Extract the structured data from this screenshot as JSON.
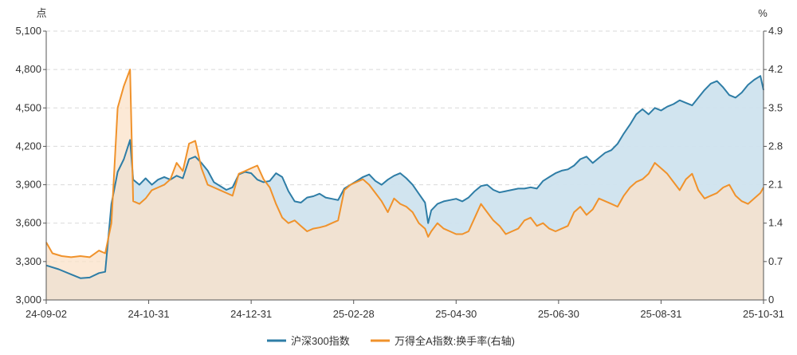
{
  "chart_data": {
    "type": "line",
    "left_axis": {
      "unit": "点",
      "range": [
        3000,
        5100
      ],
      "ticks": [
        "3,000",
        "3,300",
        "3,600",
        "3,900",
        "4,200",
        "4,500",
        "4,800",
        "5,100"
      ]
    },
    "right_axis": {
      "unit": "%",
      "range": [
        0,
        4.9
      ],
      "ticks": [
        "0",
        "0.7",
        "1.4",
        "2.1",
        "2.8",
        "3.5",
        "4.2",
        "4.9"
      ]
    },
    "x_ticks": [
      "24-09-02",
      "24-10-31",
      "24-12-31",
      "25-02-28",
      "25-04-30",
      "25-06-30",
      "25-08-31",
      "25-10-31"
    ],
    "grid": "horizontal-dashed",
    "legend_position": "bottom-center",
    "series": [
      {
        "name": "沪深300指数",
        "axis": "left",
        "color": "#2e7da6",
        "fill": "#cfe3ee",
        "points": [
          [
            0,
            3270
          ],
          [
            4,
            3240
          ],
          [
            8,
            3200
          ],
          [
            11,
            3170
          ],
          [
            14,
            3175
          ],
          [
            17,
            3210
          ],
          [
            19,
            3220
          ],
          [
            21,
            3750
          ],
          [
            23,
            4000
          ],
          [
            25,
            4100
          ],
          [
            27,
            4250
          ],
          [
            28,
            3940
          ],
          [
            30,
            3900
          ],
          [
            32,
            3950
          ],
          [
            34,
            3900
          ],
          [
            36,
            3940
          ],
          [
            38,
            3960
          ],
          [
            40,
            3940
          ],
          [
            42,
            3970
          ],
          [
            44,
            3950
          ],
          [
            46,
            4100
          ],
          [
            48,
            4120
          ],
          [
            50,
            4070
          ],
          [
            52,
            4010
          ],
          [
            54,
            3920
          ],
          [
            56,
            3890
          ],
          [
            58,
            3860
          ],
          [
            60,
            3880
          ],
          [
            62,
            3980
          ],
          [
            64,
            4000
          ],
          [
            66,
            3990
          ],
          [
            68,
            3940
          ],
          [
            70,
            3920
          ],
          [
            72,
            3930
          ],
          [
            74,
            3990
          ],
          [
            76,
            3960
          ],
          [
            78,
            3850
          ],
          [
            80,
            3770
          ],
          [
            82,
            3760
          ],
          [
            84,
            3800
          ],
          [
            86,
            3810
          ],
          [
            88,
            3830
          ],
          [
            90,
            3800
          ],
          [
            92,
            3790
          ],
          [
            94,
            3780
          ],
          [
            96,
            3870
          ],
          [
            98,
            3900
          ],
          [
            100,
            3930
          ],
          [
            102,
            3960
          ],
          [
            104,
            3980
          ],
          [
            106,
            3930
          ],
          [
            108,
            3900
          ],
          [
            110,
            3940
          ],
          [
            112,
            3970
          ],
          [
            114,
            3990
          ],
          [
            116,
            3950
          ],
          [
            118,
            3900
          ],
          [
            120,
            3830
          ],
          [
            122,
            3760
          ],
          [
            123,
            3600
          ],
          [
            124,
            3700
          ],
          [
            126,
            3750
          ],
          [
            128,
            3770
          ],
          [
            130,
            3780
          ],
          [
            132,
            3790
          ],
          [
            134,
            3770
          ],
          [
            136,
            3800
          ],
          [
            138,
            3850
          ],
          [
            140,
            3890
          ],
          [
            142,
            3900
          ],
          [
            144,
            3860
          ],
          [
            146,
            3840
          ],
          [
            148,
            3850
          ],
          [
            150,
            3860
          ],
          [
            152,
            3870
          ],
          [
            154,
            3870
          ],
          [
            156,
            3880
          ],
          [
            158,
            3870
          ],
          [
            160,
            3930
          ],
          [
            162,
            3960
          ],
          [
            164,
            3990
          ],
          [
            166,
            4010
          ],
          [
            168,
            4020
          ],
          [
            170,
            4050
          ],
          [
            172,
            4100
          ],
          [
            174,
            4120
          ],
          [
            176,
            4070
          ],
          [
            178,
            4110
          ],
          [
            180,
            4150
          ],
          [
            182,
            4170
          ],
          [
            184,
            4220
          ],
          [
            186,
            4300
          ],
          [
            188,
            4370
          ],
          [
            190,
            4450
          ],
          [
            192,
            4490
          ],
          [
            194,
            4450
          ],
          [
            196,
            4500
          ],
          [
            198,
            4480
          ],
          [
            200,
            4510
          ],
          [
            202,
            4530
          ],
          [
            204,
            4560
          ],
          [
            206,
            4540
          ],
          [
            208,
            4520
          ],
          [
            210,
            4580
          ],
          [
            212,
            4640
          ],
          [
            214,
            4690
          ],
          [
            216,
            4710
          ],
          [
            218,
            4660
          ],
          [
            220,
            4600
          ],
          [
            222,
            4580
          ],
          [
            224,
            4620
          ],
          [
            226,
            4680
          ],
          [
            228,
            4720
          ],
          [
            230,
            4750
          ],
          [
            231,
            4640
          ]
        ]
      },
      {
        "name": "万得全A指数:换手率(右轴)",
        "axis": "right",
        "color": "#f0922b",
        "fill": "#fbe1c8",
        "points": [
          [
            0,
            1.05
          ],
          [
            2,
            0.85
          ],
          [
            5,
            0.8
          ],
          [
            8,
            0.78
          ],
          [
            11,
            0.8
          ],
          [
            14,
            0.78
          ],
          [
            17,
            0.9
          ],
          [
            19,
            0.85
          ],
          [
            21,
            1.4
          ],
          [
            23,
            3.5
          ],
          [
            25,
            3.9
          ],
          [
            27,
            4.2
          ],
          [
            28,
            1.8
          ],
          [
            30,
            1.75
          ],
          [
            32,
            1.85
          ],
          [
            34,
            2.0
          ],
          [
            36,
            2.05
          ],
          [
            38,
            2.1
          ],
          [
            40,
            2.2
          ],
          [
            42,
            2.5
          ],
          [
            44,
            2.35
          ],
          [
            46,
            2.85
          ],
          [
            48,
            2.9
          ],
          [
            50,
            2.4
          ],
          [
            52,
            2.1
          ],
          [
            54,
            2.05
          ],
          [
            56,
            2.0
          ],
          [
            58,
            1.95
          ],
          [
            60,
            1.9
          ],
          [
            62,
            2.3
          ],
          [
            64,
            2.35
          ],
          [
            66,
            2.4
          ],
          [
            68,
            2.45
          ],
          [
            70,
            2.2
          ],
          [
            72,
            2.05
          ],
          [
            74,
            1.75
          ],
          [
            76,
            1.5
          ],
          [
            78,
            1.4
          ],
          [
            80,
            1.45
          ],
          [
            82,
            1.35
          ],
          [
            84,
            1.25
          ],
          [
            86,
            1.3
          ],
          [
            88,
            1.32
          ],
          [
            90,
            1.35
          ],
          [
            92,
            1.4
          ],
          [
            94,
            1.45
          ],
          [
            96,
            2.0
          ],
          [
            98,
            2.1
          ],
          [
            100,
            2.15
          ],
          [
            102,
            2.2
          ],
          [
            104,
            2.1
          ],
          [
            106,
            1.95
          ],
          [
            108,
            1.8
          ],
          [
            110,
            1.6
          ],
          [
            112,
            1.85
          ],
          [
            114,
            1.75
          ],
          [
            116,
            1.7
          ],
          [
            118,
            1.6
          ],
          [
            120,
            1.4
          ],
          [
            122,
            1.3
          ],
          [
            123,
            1.15
          ],
          [
            124,
            1.25
          ],
          [
            126,
            1.4
          ],
          [
            128,
            1.3
          ],
          [
            130,
            1.25
          ],
          [
            132,
            1.2
          ],
          [
            134,
            1.2
          ],
          [
            136,
            1.25
          ],
          [
            138,
            1.5
          ],
          [
            140,
            1.75
          ],
          [
            142,
            1.6
          ],
          [
            144,
            1.45
          ],
          [
            146,
            1.35
          ],
          [
            148,
            1.2
          ],
          [
            150,
            1.25
          ],
          [
            152,
            1.3
          ],
          [
            154,
            1.45
          ],
          [
            156,
            1.5
          ],
          [
            158,
            1.35
          ],
          [
            160,
            1.4
          ],
          [
            162,
            1.3
          ],
          [
            164,
            1.25
          ],
          [
            166,
            1.3
          ],
          [
            168,
            1.35
          ],
          [
            170,
            1.6
          ],
          [
            172,
            1.7
          ],
          [
            174,
            1.55
          ],
          [
            176,
            1.65
          ],
          [
            178,
            1.85
          ],
          [
            180,
            1.8
          ],
          [
            182,
            1.75
          ],
          [
            184,
            1.7
          ],
          [
            186,
            1.9
          ],
          [
            188,
            2.05
          ],
          [
            190,
            2.15
          ],
          [
            192,
            2.2
          ],
          [
            194,
            2.3
          ],
          [
            196,
            2.5
          ],
          [
            198,
            2.4
          ],
          [
            200,
            2.3
          ],
          [
            202,
            2.15
          ],
          [
            204,
            2.0
          ],
          [
            206,
            2.2
          ],
          [
            208,
            2.3
          ],
          [
            210,
            2.0
          ],
          [
            212,
            1.85
          ],
          [
            214,
            1.9
          ],
          [
            216,
            1.95
          ],
          [
            218,
            2.05
          ],
          [
            220,
            2.1
          ],
          [
            222,
            1.9
          ],
          [
            224,
            1.8
          ],
          [
            226,
            1.75
          ],
          [
            228,
            1.85
          ],
          [
            230,
            1.95
          ],
          [
            231,
            2.05
          ]
        ]
      }
    ]
  }
}
